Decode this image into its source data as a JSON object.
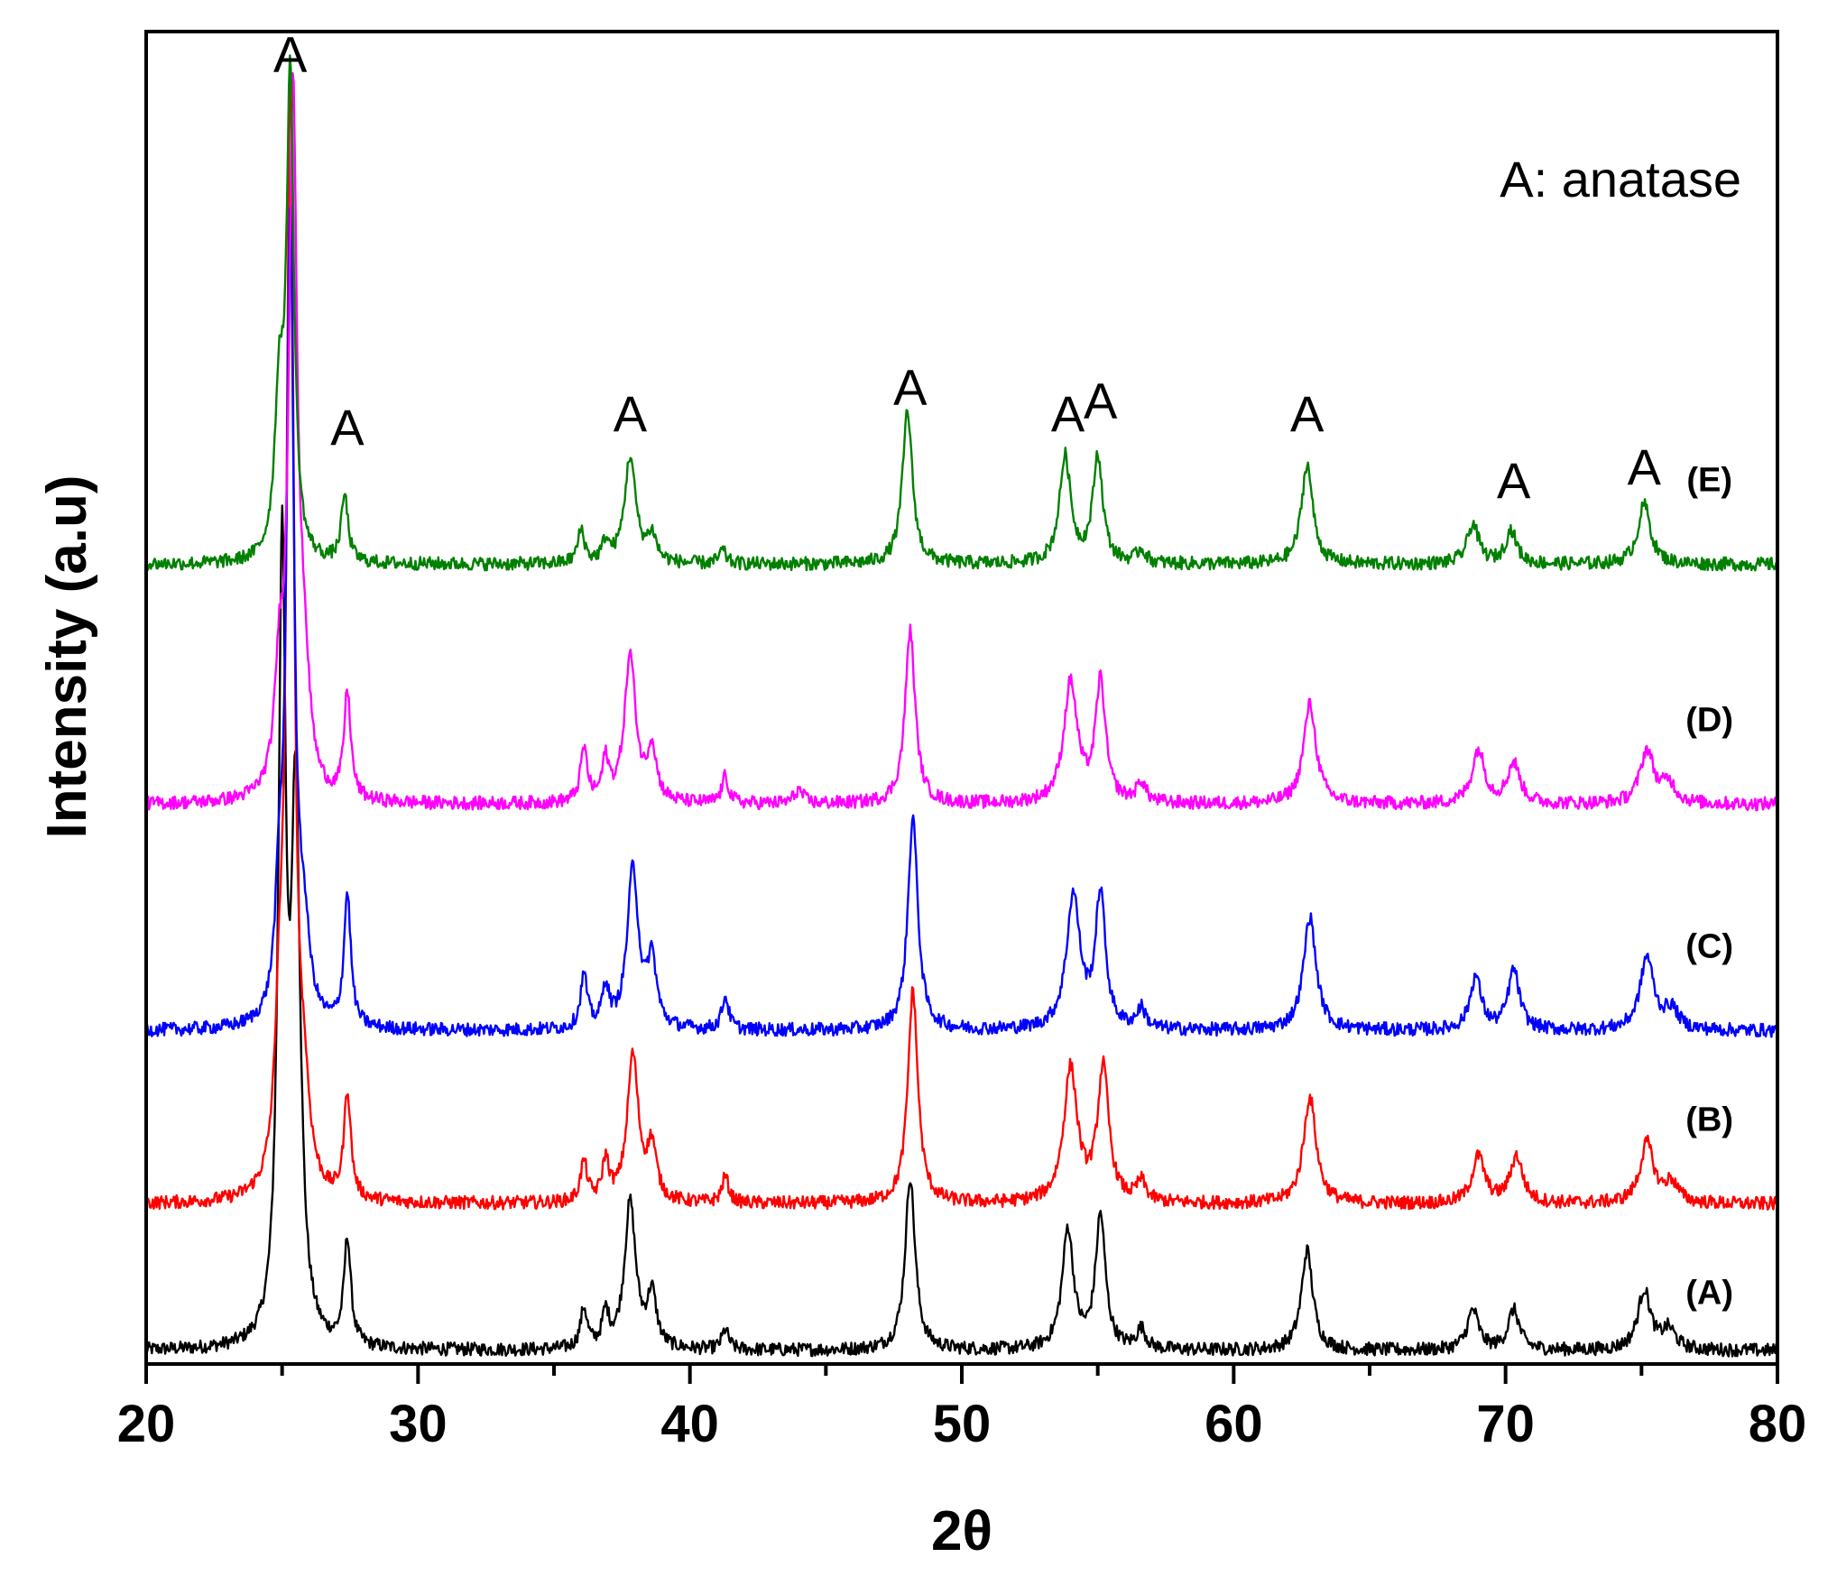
{
  "chart_data": {
    "type": "line",
    "title": "",
    "xlabel": "2θ",
    "ylabel": "Intensity (a.u)",
    "xlim": [
      20,
      80
    ],
    "ylim": [
      0,
      100
    ],
    "x_ticks": [
      "20",
      "30",
      "40",
      "50",
      "60",
      "70",
      "80"
    ],
    "grid": false,
    "legend_text": "A: anatase",
    "legend_position": "top-right",
    "peak_marker": "A",
    "peaks": [
      {
        "x": 25.3,
        "label": "A",
        "level": 97
      },
      {
        "x": 27.4,
        "label": "A",
        "level": 69
      },
      {
        "x": 37.8,
        "label": "A",
        "level": 70
      },
      {
        "x": 48.1,
        "label": "A",
        "level": 72
      },
      {
        "x": 53.9,
        "label": "A",
        "level": 70
      },
      {
        "x": 55.1,
        "label": "A",
        "level": 71
      },
      {
        "x": 62.7,
        "label": "A",
        "level": 70
      },
      {
        "x": 70.3,
        "label": "A",
        "level": 65
      },
      {
        "x": 75.1,
        "label": "A",
        "level": 66
      }
    ],
    "series": [
      {
        "name": "(A)",
        "color": "#000000",
        "baseline": 1,
        "label_level": 4.5,
        "peaks": [
          {
            "x": 25.0,
            "h": 58,
            "w": 0.16
          },
          {
            "x": 25.5,
            "h": 40,
            "w": 0.2
          },
          {
            "x": 27.4,
            "h": 8,
            "w": 0.15
          },
          {
            "x": 36.1,
            "h": 3,
            "w": 0.15
          },
          {
            "x": 36.9,
            "h": 2.5,
            "w": 0.15
          },
          {
            "x": 37.8,
            "h": 11,
            "w": 0.25
          },
          {
            "x": 38.6,
            "h": 4,
            "w": 0.2
          },
          {
            "x": 41.3,
            "h": 1.5,
            "w": 0.15
          },
          {
            "x": 48.1,
            "h": 13,
            "w": 0.22
          },
          {
            "x": 53.9,
            "h": 9,
            "w": 0.25
          },
          {
            "x": 55.1,
            "h": 10,
            "w": 0.22
          },
          {
            "x": 56.6,
            "h": 1.5,
            "w": 0.2
          },
          {
            "x": 62.7,
            "h": 7.5,
            "w": 0.25
          },
          {
            "x": 68.8,
            "h": 3,
            "w": 0.25
          },
          {
            "x": 70.3,
            "h": 3,
            "w": 0.25
          },
          {
            "x": 75.1,
            "h": 4.5,
            "w": 0.28
          },
          {
            "x": 76.0,
            "h": 1.5,
            "w": 0.3
          }
        ]
      },
      {
        "name": "(B)",
        "color": "#ff0000",
        "baseline": 12,
        "label_level": 17.5,
        "peaks": [
          {
            "x": 24.9,
            "h": 10,
            "w": 0.2
          },
          {
            "x": 25.3,
            "h": 83,
            "w": 0.16
          },
          {
            "x": 25.8,
            "h": 6,
            "w": 0.25
          },
          {
            "x": 27.4,
            "h": 8,
            "w": 0.15
          },
          {
            "x": 36.1,
            "h": 3,
            "w": 0.15
          },
          {
            "x": 36.9,
            "h": 3,
            "w": 0.15
          },
          {
            "x": 37.9,
            "h": 11,
            "w": 0.25
          },
          {
            "x": 38.6,
            "h": 4,
            "w": 0.2
          },
          {
            "x": 41.3,
            "h": 2,
            "w": 0.15
          },
          {
            "x": 48.2,
            "h": 16,
            "w": 0.22
          },
          {
            "x": 54.0,
            "h": 10,
            "w": 0.3
          },
          {
            "x": 55.2,
            "h": 10,
            "w": 0.25
          },
          {
            "x": 56.6,
            "h": 1.5,
            "w": 0.2
          },
          {
            "x": 62.8,
            "h": 8,
            "w": 0.28
          },
          {
            "x": 69.0,
            "h": 3.5,
            "w": 0.28
          },
          {
            "x": 70.4,
            "h": 3.5,
            "w": 0.28
          },
          {
            "x": 75.2,
            "h": 4.5,
            "w": 0.3
          },
          {
            "x": 76.1,
            "h": 1.5,
            "w": 0.3
          }
        ]
      },
      {
        "name": "(C)",
        "color": "#0000ff",
        "baseline": 25,
        "label_level": 30.5,
        "peaks": [
          {
            "x": 24.9,
            "h": 8,
            "w": 0.18
          },
          {
            "x": 25.3,
            "h": 60,
            "w": 0.16
          },
          {
            "x": 25.8,
            "h": 6,
            "w": 0.25
          },
          {
            "x": 27.4,
            "h": 10,
            "w": 0.15
          },
          {
            "x": 36.1,
            "h": 4,
            "w": 0.15
          },
          {
            "x": 36.9,
            "h": 3,
            "w": 0.15
          },
          {
            "x": 37.9,
            "h": 12,
            "w": 0.25
          },
          {
            "x": 38.6,
            "h": 5,
            "w": 0.2
          },
          {
            "x": 41.3,
            "h": 2.5,
            "w": 0.15
          },
          {
            "x": 48.2,
            "h": 16,
            "w": 0.22
          },
          {
            "x": 54.1,
            "h": 10,
            "w": 0.3
          },
          {
            "x": 55.1,
            "h": 10,
            "w": 0.22
          },
          {
            "x": 56.6,
            "h": 1.5,
            "w": 0.2
          },
          {
            "x": 62.8,
            "h": 8.5,
            "w": 0.28
          },
          {
            "x": 68.9,
            "h": 4,
            "w": 0.25
          },
          {
            "x": 70.3,
            "h": 4.5,
            "w": 0.25
          },
          {
            "x": 75.2,
            "h": 5.5,
            "w": 0.3
          },
          {
            "x": 76.1,
            "h": 1.5,
            "w": 0.3
          }
        ]
      },
      {
        "name": "(D)",
        "color": "#ff00ff",
        "baseline": 42,
        "label_level": 47.5,
        "peaks": [
          {
            "x": 24.9,
            "h": 8,
            "w": 0.2
          },
          {
            "x": 25.4,
            "h": 52,
            "w": 0.18
          },
          {
            "x": 25.8,
            "h": 8,
            "w": 0.25
          },
          {
            "x": 27.4,
            "h": 8,
            "w": 0.15
          },
          {
            "x": 36.1,
            "h": 4,
            "w": 0.15
          },
          {
            "x": 36.9,
            "h": 3,
            "w": 0.15
          },
          {
            "x": 37.8,
            "h": 11,
            "w": 0.25
          },
          {
            "x": 38.6,
            "h": 4,
            "w": 0.2
          },
          {
            "x": 41.3,
            "h": 2,
            "w": 0.15
          },
          {
            "x": 44.0,
            "h": 1,
            "w": 0.2
          },
          {
            "x": 48.1,
            "h": 13,
            "w": 0.22
          },
          {
            "x": 54.0,
            "h": 9,
            "w": 0.3
          },
          {
            "x": 55.1,
            "h": 9,
            "w": 0.22
          },
          {
            "x": 56.6,
            "h": 1.5,
            "w": 0.2
          },
          {
            "x": 62.8,
            "h": 7.5,
            "w": 0.28
          },
          {
            "x": 69.0,
            "h": 4,
            "w": 0.28
          },
          {
            "x": 70.3,
            "h": 3,
            "w": 0.28
          },
          {
            "x": 75.2,
            "h": 4,
            "w": 0.3
          },
          {
            "x": 76.0,
            "h": 1.5,
            "w": 0.3
          }
        ]
      },
      {
        "name": "(E)",
        "color": "#008000",
        "baseline": 60,
        "label_level": 65.5,
        "peaks": [
          {
            "x": 24.9,
            "h": 12,
            "w": 0.2
          },
          {
            "x": 25.3,
            "h": 36,
            "w": 0.16
          },
          {
            "x": 27.3,
            "h": 5,
            "w": 0.15
          },
          {
            "x": 36.0,
            "h": 2.5,
            "w": 0.15
          },
          {
            "x": 36.9,
            "h": 1.5,
            "w": 0.15
          },
          {
            "x": 37.8,
            "h": 8,
            "w": 0.25
          },
          {
            "x": 38.6,
            "h": 2,
            "w": 0.2
          },
          {
            "x": 41.2,
            "h": 1,
            "w": 0.15
          },
          {
            "x": 48.0,
            "h": 11.5,
            "w": 0.22
          },
          {
            "x": 53.8,
            "h": 8,
            "w": 0.25
          },
          {
            "x": 55.0,
            "h": 8,
            "w": 0.22
          },
          {
            "x": 56.6,
            "h": 1,
            "w": 0.2
          },
          {
            "x": 62.7,
            "h": 7.5,
            "w": 0.25
          },
          {
            "x": 68.8,
            "h": 3,
            "w": 0.25
          },
          {
            "x": 70.2,
            "h": 2.5,
            "w": 0.25
          },
          {
            "x": 75.1,
            "h": 4.5,
            "w": 0.28
          }
        ]
      }
    ]
  }
}
